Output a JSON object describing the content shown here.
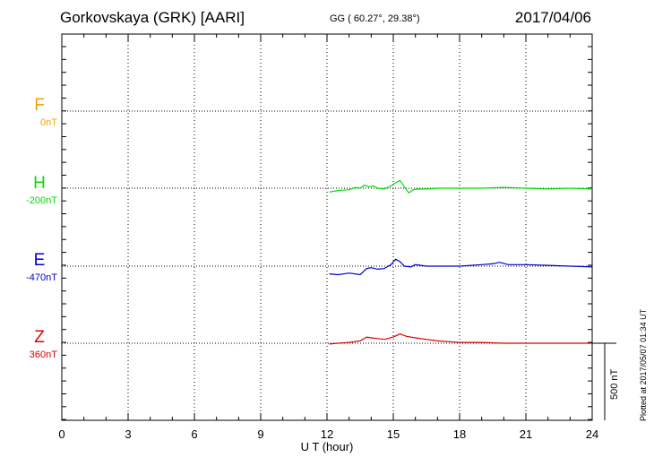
{
  "header": {
    "station": "Gorkovskaya (GRK)  [AARI]",
    "coords": "GG ( 60.27°,  29.38°)",
    "date": "2017/04/06"
  },
  "side_note": "Plotted at 2017/05/07 01:34 UT",
  "scale_bar": {
    "label": "500 nT",
    "value_nT": 500
  },
  "components": [
    {
      "letter": "F",
      "offset": "0nT",
      "color": "#f5a000"
    },
    {
      "letter": "H",
      "offset": "-200nT",
      "color": "#00dd00"
    },
    {
      "letter": "E",
      "offset": "-470nT",
      "color": "#0000cc"
    },
    {
      "letter": "Z",
      "offset": "360nT",
      "color": "#dd0000"
    }
  ],
  "chart_data": {
    "type": "line",
    "xlabel": "U T (hour)",
    "xlim": [
      0,
      24
    ],
    "xticks": [
      "0",
      "3",
      "6",
      "9",
      "12",
      "15",
      "18",
      "21",
      "24"
    ],
    "grid": true,
    "series": [
      {
        "name": "F",
        "color": "#f5a000",
        "x": [],
        "y": []
      },
      {
        "name": "H",
        "color": "#00dd00",
        "x": [
          12.1,
          12.5,
          13.0,
          13.3,
          13.5,
          13.7,
          13.9,
          14.1,
          14.3,
          14.6,
          14.9,
          15.1,
          15.3,
          15.5,
          15.7,
          15.9,
          16.2,
          16.6,
          17.0,
          18.0,
          19.0,
          20.0,
          21.0,
          22.0,
          23.0,
          24.0
        ],
        "y": [
          -25,
          -15,
          -10,
          5,
          0,
          20,
          10,
          15,
          0,
          -5,
          15,
          35,
          50,
          10,
          -30,
          -10,
          -5,
          -5,
          0,
          0,
          0,
          5,
          0,
          -5,
          0,
          -5
        ]
      },
      {
        "name": "E",
        "color": "#0000cc",
        "x": [
          12.1,
          12.5,
          13.0,
          13.5,
          13.8,
          14.0,
          14.3,
          14.6,
          14.9,
          15.1,
          15.3,
          15.5,
          15.8,
          16.0,
          16.5,
          17.0,
          18.0,
          19.0,
          19.5,
          19.8,
          20.2,
          21.0,
          22.0,
          23.0,
          24.0
        ],
        "y": [
          -50,
          -55,
          -45,
          -55,
          -15,
          -10,
          -20,
          -15,
          10,
          45,
          30,
          0,
          -5,
          10,
          0,
          0,
          0,
          10,
          15,
          25,
          10,
          10,
          5,
          0,
          -5
        ]
      },
      {
        "name": "Z",
        "color": "#dd0000",
        "x": [
          12.1,
          12.5,
          13.0,
          13.5,
          13.8,
          14.0,
          14.3,
          14.6,
          15.0,
          15.3,
          15.6,
          16.0,
          16.5,
          17.0,
          18.0,
          19.0,
          20.0,
          21.0,
          22.0,
          23.0,
          24.0
        ],
        "y": [
          -5,
          0,
          5,
          15,
          40,
          35,
          30,
          25,
          40,
          60,
          45,
          35,
          25,
          15,
          5,
          5,
          0,
          0,
          0,
          0,
          0
        ]
      }
    ]
  }
}
